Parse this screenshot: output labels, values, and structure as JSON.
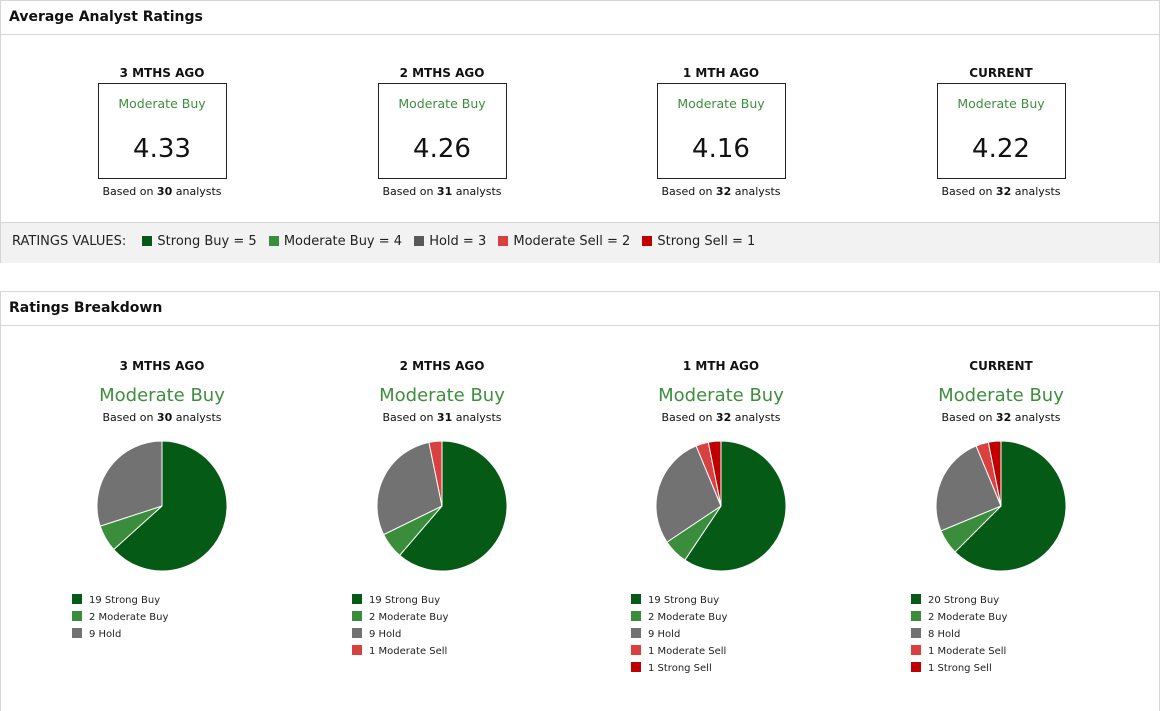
{
  "colors": {
    "strong_buy": "#055a16",
    "moderate_buy": "#3a8d3a",
    "hold": "#727272",
    "hold_key": "#595959",
    "moderate_sell": "#d94040",
    "strong_sell": "#c00000",
    "label_green": "#3e8e3e"
  },
  "average": {
    "title": "Average Analyst Ratings",
    "periods": [
      {
        "label": "3 MTHS AGO",
        "rating": "Moderate Buy",
        "score": "4.33",
        "based_prefix": "Based on",
        "analysts": "30",
        "based_suffix": "analysts"
      },
      {
        "label": "2 MTHS AGO",
        "rating": "Moderate Buy",
        "score": "4.26",
        "based_prefix": "Based on",
        "analysts": "31",
        "based_suffix": "analysts"
      },
      {
        "label": "1 MTH AGO",
        "rating": "Moderate Buy",
        "score": "4.16",
        "based_prefix": "Based on",
        "analysts": "32",
        "based_suffix": "analysts"
      },
      {
        "label": "CURRENT",
        "rating": "Moderate Buy",
        "score": "4.22",
        "based_prefix": "Based on",
        "analysts": "32",
        "based_suffix": "analysts"
      }
    ],
    "ratings_values": {
      "title": "RATINGS VALUES:",
      "items": [
        {
          "text": "Strong Buy = 5",
          "color": "#055a16"
        },
        {
          "text": "Moderate Buy = 4",
          "color": "#3a8d3a"
        },
        {
          "text": "Hold = 3",
          "color": "#595959"
        },
        {
          "text": "Moderate Sell = 2",
          "color": "#d94040"
        },
        {
          "text": "Strong Sell = 1",
          "color": "#c00000"
        }
      ]
    }
  },
  "breakdown": {
    "title": "Ratings Breakdown",
    "periods": [
      {
        "label": "3 MTHS AGO",
        "rating": "Moderate Buy",
        "based_prefix": "Based on",
        "analysts": "30",
        "based_suffix": "analysts",
        "legend": [
          "19 Strong Buy",
          "2 Moderate Buy",
          "9 Hold"
        ]
      },
      {
        "label": "2 MTHS AGO",
        "rating": "Moderate Buy",
        "based_prefix": "Based on",
        "analysts": "31",
        "based_suffix": "analysts",
        "legend": [
          "19 Strong Buy",
          "2 Moderate Buy",
          "9 Hold",
          "1 Moderate Sell"
        ]
      },
      {
        "label": "1 MTH AGO",
        "rating": "Moderate Buy",
        "based_prefix": "Based on",
        "analysts": "32",
        "based_suffix": "analysts",
        "legend": [
          "19 Strong Buy",
          "2 Moderate Buy",
          "9 Hold",
          "1 Moderate Sell",
          "1 Strong Sell"
        ]
      },
      {
        "label": "CURRENT",
        "rating": "Moderate Buy",
        "based_prefix": "Based on",
        "analysts": "32",
        "based_suffix": "analysts",
        "legend": [
          "20 Strong Buy",
          "2 Moderate Buy",
          "8 Hold",
          "1 Moderate Sell",
          "1 Strong Sell"
        ]
      }
    ]
  },
  "chart_data": [
    {
      "type": "pie",
      "title": "3 MTHS AGO",
      "categories": [
        "Strong Buy",
        "Moderate Buy",
        "Hold"
      ],
      "values": [
        19,
        2,
        9
      ]
    },
    {
      "type": "pie",
      "title": "2 MTHS AGO",
      "categories": [
        "Strong Buy",
        "Moderate Buy",
        "Hold",
        "Moderate Sell"
      ],
      "values": [
        19,
        2,
        9,
        1
      ]
    },
    {
      "type": "pie",
      "title": "1 MTH AGO",
      "categories": [
        "Strong Buy",
        "Moderate Buy",
        "Hold",
        "Moderate Sell",
        "Strong Sell"
      ],
      "values": [
        19,
        2,
        9,
        1,
        1
      ]
    },
    {
      "type": "pie",
      "title": "CURRENT",
      "categories": [
        "Strong Buy",
        "Moderate Buy",
        "Hold",
        "Moderate Sell",
        "Strong Sell"
      ],
      "values": [
        20,
        2,
        8,
        1,
        1
      ]
    }
  ]
}
